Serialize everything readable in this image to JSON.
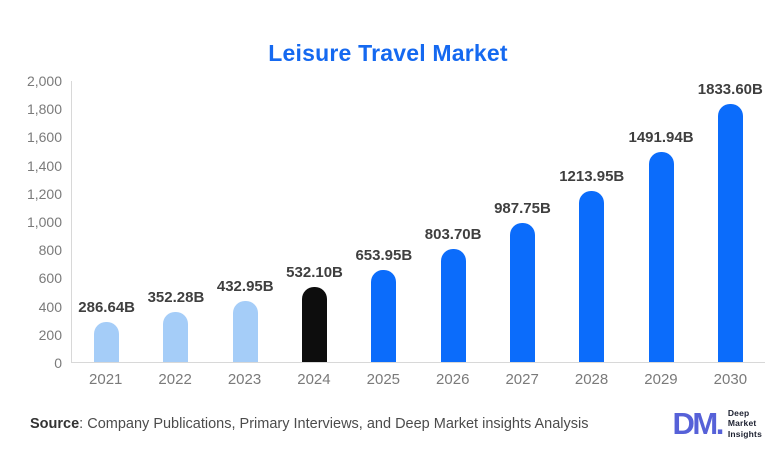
{
  "header": {
    "title": "Leisure Travel Market"
  },
  "chart_data": {
    "type": "bar",
    "title": "Leisure Travel Market",
    "categories": [
      "2021",
      "2022",
      "2023",
      "2024",
      "2025",
      "2026",
      "2027",
      "2028",
      "2029",
      "2030"
    ],
    "values": [
      286.64,
      352.28,
      432.95,
      532.1,
      653.95,
      803.7,
      987.75,
      1213.95,
      1491.94,
      1833.6
    ],
    "value_labels": [
      "286.64B",
      "352.28B",
      "432.95B",
      "532.10B",
      "653.95B",
      "803.70B",
      "987.75B",
      "1213.95B",
      "1491.94B",
      "1833.60B"
    ],
    "bar_colors": [
      "#a5cdf8",
      "#a5cdf8",
      "#a5cdf8",
      "#0d0d0d",
      "#0b6cfb",
      "#0b6cfb",
      "#0b6cfb",
      "#0b6cfb",
      "#0b6cfb",
      "#0b6cfb"
    ],
    "xlabel": "",
    "ylabel": "",
    "ylim": [
      0,
      2000
    ],
    "ytick_values": [
      0,
      200,
      400,
      600,
      800,
      1000,
      1200,
      1400,
      1600,
      1800,
      2000
    ],
    "ytick_labels": [
      "0",
      "200",
      "400",
      "600",
      "800",
      "1,000",
      "1,200",
      "1,400",
      "1,600",
      "1,800",
      "2,000"
    ],
    "grid": false,
    "legend": false
  },
  "footer": {
    "source_label": "Source",
    "source_text": ": Company Publications, Primary Interviews, and Deep Market insights Analysis",
    "logo": {
      "mark": "DM.",
      "lines": [
        "Deep",
        "Market",
        "Insights"
      ]
    }
  },
  "colors": {
    "title_text": "#1569f0",
    "bar_historical": "#a5cdf8",
    "bar_current": "#0d0d0d",
    "bar_forecast": "#0b6cfb",
    "axis_line": "#d8d8d8",
    "tick_text": "#7a7a7a",
    "value_label_text": "#3f3f3f",
    "logo_mark": "#5661d8",
    "logo_text": "#1c2030"
  }
}
